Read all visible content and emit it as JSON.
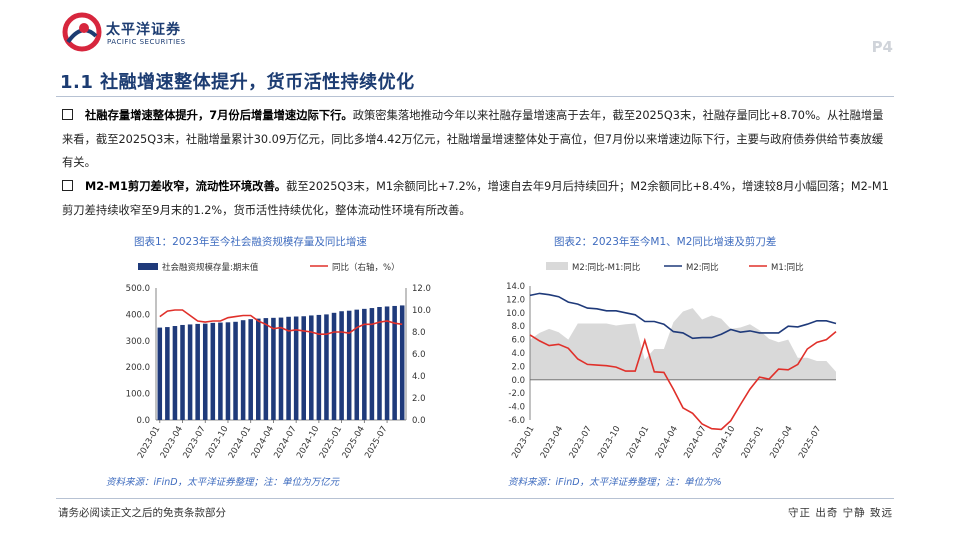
{
  "header": {
    "brand_cn": "太平洋证券",
    "brand_en": "PACIFIC SECURITIES",
    "page": "P4"
  },
  "section_title": "1.1 社融增速整体提升，货币活性持续优化",
  "paragraphs": [
    {
      "bold": "社融存量增速整体提升，7月份后增量增速边际下行。",
      "text": "政策密集落地推动今年以来社融存量增速高于去年，截至2025Q3末，社融存量同比+8.70%。从社融增量来看，截至2025Q3末，社融增量累计30.09万亿元，同比多增4.42万亿元，社融增量增速整体处于高位，但7月份以来增速边际下行，主要与政府债券供给节奏放缓有关。"
    },
    {
      "bold": "M2-M1剪刀差收窄，流动性环境改善。",
      "text": "截至2025Q3末，M1余额同比+7.2%，增速自去年9月后持续回升；M2余额同比+8.4%，增速较8月小幅回落；M2-M1剪刀差持续收窄至9月末的1.2%，货币活性持续优化，整体流动性环境有所改善。"
    }
  ],
  "figures": [
    {
      "title": "图表1：2023年至今社会融资规模存量及同比增速",
      "source": "资料来源：iFinD，太平洋证券整理；注：单位为万亿元"
    },
    {
      "title": "图表2：2023年至今M1、M2同比增速及剪刀差",
      "source": "资料来源：iFinD，太平洋证券整理；注：单位为%"
    }
  ],
  "chart_data": [
    {
      "type": "bar",
      "title": "图表1：2023年至今社会融资规模存量及同比增速",
      "legend": [
        "社会融资规模存量:期末值",
        "同比（右轴，%）"
      ],
      "x": [
        "2023-01",
        "2023-02",
        "2023-03",
        "2023-04",
        "2023-05",
        "2023-06",
        "2023-07",
        "2023-08",
        "2023-09",
        "2023-10",
        "2023-11",
        "2023-12",
        "2024-01",
        "2024-02",
        "2024-03",
        "2024-04",
        "2024-05",
        "2024-06",
        "2024-07",
        "2024-08",
        "2024-09",
        "2024-10",
        "2024-11",
        "2024-12",
        "2025-01",
        "2025-02",
        "2025-03",
        "2025-04",
        "2025-05",
        "2025-06",
        "2025-07",
        "2025-08",
        "2025-09"
      ],
      "xticks": [
        "2023-01",
        "2023-04",
        "2023-07",
        "2023-10",
        "2024-01",
        "2024-04",
        "2024-07",
        "2024-10",
        "2025-01",
        "2025-04",
        "2025-07"
      ],
      "series": [
        {
          "name": "社会融资规模存量:期末值",
          "axis": "left",
          "color": "#1f3a7a",
          "values": [
            350,
            352,
            356,
            360,
            362,
            364,
            365,
            368,
            369,
            370,
            372,
            378,
            382,
            384,
            386,
            387,
            388,
            391,
            392,
            393,
            396,
            398,
            400,
            406,
            412,
            414,
            418,
            421,
            424,
            428,
            430,
            432,
            434
          ]
        },
        {
          "name": "同比（右轴，%）",
          "axis": "right",
          "color": "#e0302a",
          "values": [
            9.4,
            9.9,
            10.0,
            10.0,
            9.5,
            9.0,
            8.9,
            9.0,
            9.0,
            9.3,
            9.4,
            9.5,
            9.5,
            9.0,
            8.7,
            8.3,
            8.4,
            8.1,
            8.2,
            8.1,
            8.0,
            7.8,
            7.8,
            8.0,
            8.0,
            7.9,
            8.4,
            8.7,
            8.7,
            8.9,
            9.0,
            8.8,
            8.7
          ]
        }
      ],
      "ylim": [
        0,
        500
      ],
      "yticks": [
        "500.0",
        "400.0",
        "300.0",
        "200.0",
        "100.0",
        "0.0"
      ],
      "y2lim": [
        0,
        12
      ],
      "y2ticks": [
        "12.0",
        "10.0",
        "8.0",
        "6.0",
        "4.0",
        "2.0",
        "0.0"
      ]
    },
    {
      "type": "line",
      "title": "图表2：2023年至今M1、M2同比增速及剪刀差",
      "legend": [
        "M2:同比-M1:同比",
        "M2:同比",
        "M1:同比"
      ],
      "x": [
        "2023-01",
        "2023-02",
        "2023-03",
        "2023-04",
        "2023-05",
        "2023-06",
        "2023-07",
        "2023-08",
        "2023-09",
        "2023-10",
        "2023-11",
        "2023-12",
        "2024-01",
        "2024-02",
        "2024-03",
        "2024-04",
        "2024-05",
        "2024-06",
        "2024-07",
        "2024-08",
        "2024-09",
        "2024-10",
        "2024-11",
        "2024-12",
        "2025-01",
        "2025-02",
        "2025-03",
        "2025-04",
        "2025-05",
        "2025-06",
        "2025-07",
        "2025-08",
        "2025-09"
      ],
      "xticks": [
        "2023-01",
        "2023-04",
        "2023-07",
        "2023-10",
        "2024-01",
        "2024-04",
        "2024-07",
        "2024-10",
        "2025-01",
        "2025-04",
        "2025-07"
      ],
      "series": [
        {
          "name": "M2:同比-M1:同比",
          "type": "area",
          "color": "#d9d9d9",
          "values": [
            6.0,
            7.0,
            7.6,
            7.1,
            6.0,
            8.4,
            8.4,
            8.4,
            8.4,
            8.1,
            8.3,
            8.4,
            3.0,
            4.6,
            4.6,
            8.6,
            10.2,
            10.7,
            9.0,
            9.6,
            9.1,
            7.6,
            7.8,
            8.3,
            7.4,
            6.1,
            5.6,
            6.0,
            3.3,
            3.3,
            2.8,
            2.8,
            1.2
          ]
        },
        {
          "name": "M2:同比",
          "type": "line",
          "color": "#1f3a7a",
          "values": [
            12.6,
            12.9,
            12.7,
            12.4,
            11.6,
            11.3,
            10.7,
            10.6,
            10.3,
            10.3,
            10.0,
            9.7,
            8.7,
            8.7,
            8.3,
            7.2,
            7.0,
            6.2,
            6.3,
            6.3,
            6.8,
            7.5,
            7.1,
            7.3,
            7.0,
            7.0,
            7.0,
            8.0,
            7.9,
            8.3,
            8.8,
            8.8,
            8.4
          ]
        },
        {
          "name": "M1:同比",
          "type": "line",
          "color": "#e0302a",
          "values": [
            6.7,
            5.8,
            5.1,
            5.3,
            4.7,
            3.1,
            2.3,
            2.2,
            2.1,
            1.9,
            1.3,
            1.3,
            5.9,
            1.2,
            1.1,
            -1.4,
            -4.2,
            -5.0,
            -6.6,
            -7.3,
            -7.4,
            -6.1,
            -3.7,
            -1.4,
            0.4,
            0.1,
            1.6,
            1.5,
            2.3,
            4.6,
            5.6,
            6.0,
            7.2
          ]
        }
      ],
      "ylim": [
        -6,
        14
      ],
      "yticks": [
        "14.0",
        "12.0",
        "10.0",
        "8.0",
        "6.0",
        "4.0",
        "2.0",
        "0.0",
        "-2.0",
        "-4.0",
        "-6.0"
      ]
    }
  ],
  "footer": {
    "disclaimer": "请务必阅读正文之后的免责条款部分",
    "slogan": "守正 出奇 宁静 致远"
  }
}
